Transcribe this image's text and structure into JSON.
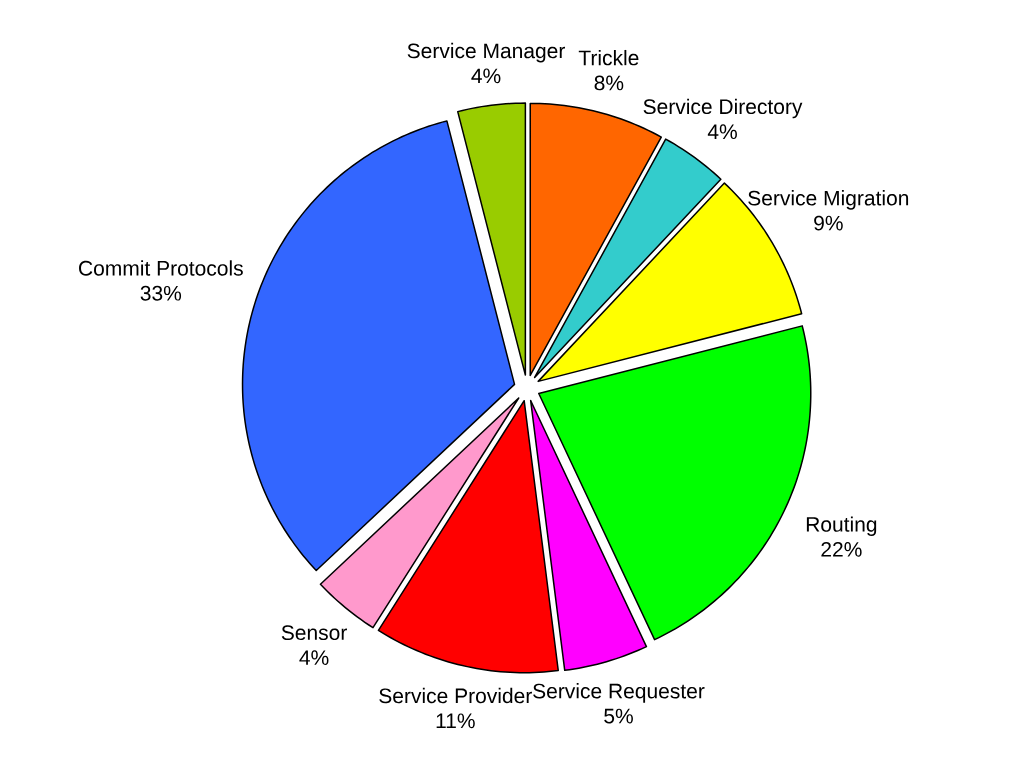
{
  "chart_data": {
    "type": "pie",
    "categories": [
      "Trickle",
      "Service Directory",
      "Service Migration",
      "Routing",
      "Service Requester",
      "Service Provider",
      "Sensor",
      "Commit Protocols",
      "Service Manager"
    ],
    "values": [
      8,
      4,
      9,
      22,
      5,
      11,
      4,
      33,
      4
    ],
    "colors": [
      "#ff6600",
      "#33cccc",
      "#ffff00",
      "#00ff00",
      "#ff00ff",
      "#ff0000",
      "#ff99cc",
      "#3366ff",
      "#99cc00"
    ],
    "value_labels": [
      "8%",
      "4%",
      "9%",
      "22%",
      "5%",
      "11%",
      "4%",
      "33%",
      "4%"
    ]
  }
}
